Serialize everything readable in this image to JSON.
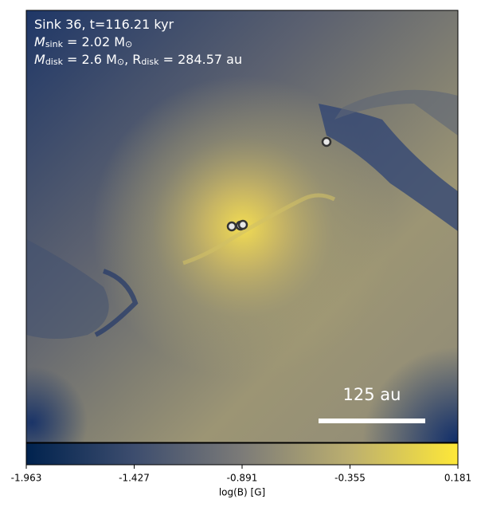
{
  "chart_data": {
    "type": "image",
    "annotation_lines": [
      {
        "parts": [
          "Sink 36, t=116.21 kyr"
        ]
      },
      {
        "parts": [
          "M",
          "sink",
          " = 2.02 M",
          "⊙"
        ]
      },
      {
        "parts": [
          "M",
          "disk",
          " = 2.6 M",
          "⊙",
          ", R",
          "disk",
          " = 284.57 au"
        ]
      }
    ],
    "scale_bar_label": "125 au",
    "colorbar": {
      "label": "log(B) [G]",
      "lim": [
        -1.963,
        0.181
      ],
      "ticks": [
        -1.963,
        -1.427,
        -0.891,
        -0.355,
        0.181
      ],
      "colormap": "cividis"
    }
  }
}
